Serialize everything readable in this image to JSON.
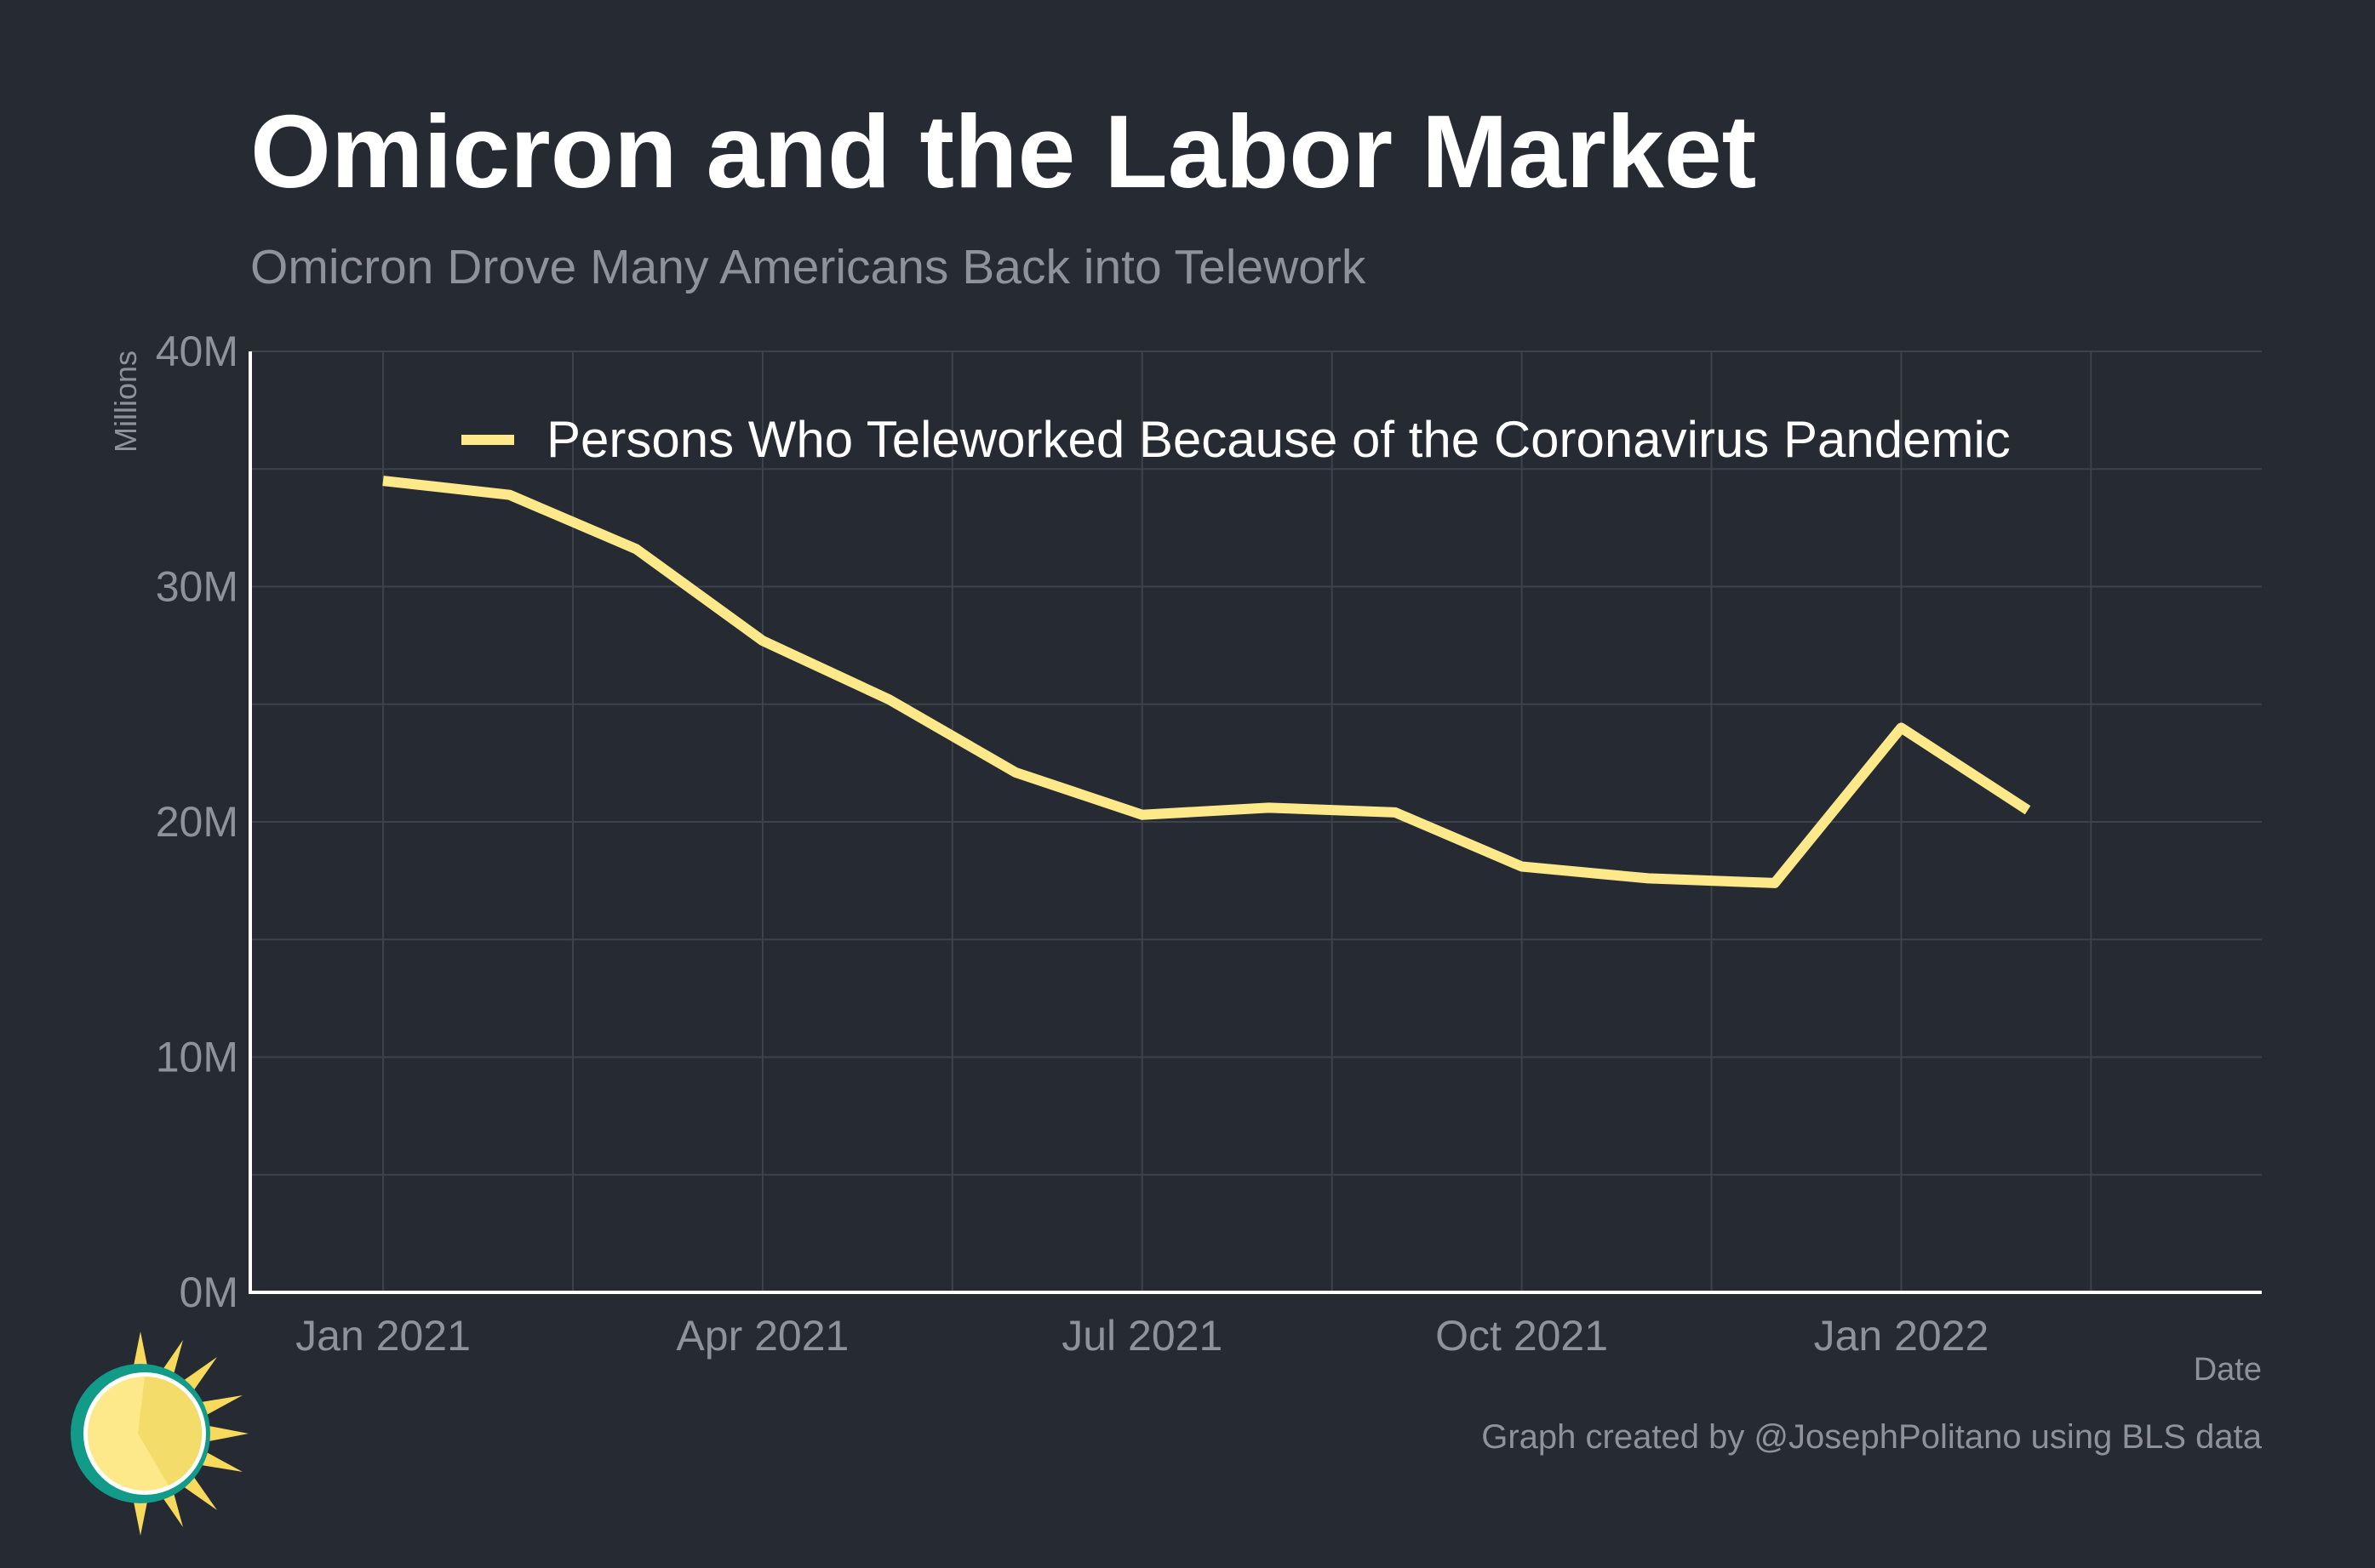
{
  "title": "Omicron and the Labor Market",
  "subtitle": "Omicron Drove Many Americans Back into Telework",
  "caption": "Graph created by @JosephPolitano using BLS data",
  "colors": {
    "background": "#252a33",
    "line": "#fde98a",
    "grid": "#3d424b",
    "axis": "#ffffff",
    "tick_text": "#8f9299"
  },
  "chart_data": {
    "type": "line",
    "title": "Omicron and the Labor Market",
    "subtitle": "Omicron Drove Many Americans Back into Telework",
    "xlabel": "Date",
    "ylabel": "Millions",
    "ylim": [
      0,
      40
    ],
    "y_ticks": [
      0,
      10,
      20,
      30,
      40
    ],
    "y_tick_labels": [
      "0M",
      "10M",
      "20M",
      "30M",
      "40M"
    ],
    "x_ticks": [
      "2021-01",
      "2021-04",
      "2021-07",
      "2021-10",
      "2022-01"
    ],
    "x_tick_labels": [
      "Jan 2021",
      "Apr 2021",
      "Jul 2021",
      "Oct 2021",
      "Jan 2022"
    ],
    "grid": true,
    "legend_position": "top",
    "x": [
      "2021-01",
      "2021-02",
      "2021-03",
      "2021-04",
      "2021-05",
      "2021-06",
      "2021-07",
      "2021-08",
      "2021-09",
      "2021-10",
      "2021-11",
      "2021-12",
      "2022-01",
      "2022-02"
    ],
    "series": [
      {
        "name": "Persons Who Teleworked Because of the Coronavirus Pandemic",
        "values": [
          34.5,
          33.9,
          31.6,
          27.7,
          25.2,
          22.1,
          20.3,
          20.6,
          20.4,
          18.1,
          17.6,
          17.4,
          24.0,
          20.5
        ]
      }
    ]
  }
}
